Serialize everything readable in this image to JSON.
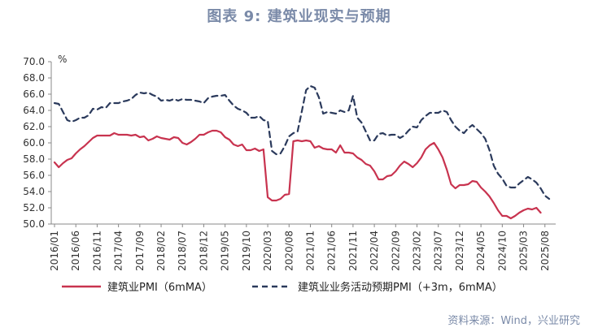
{
  "header": {
    "title": "图表 9:    建筑业现实与预期"
  },
  "footer": {
    "source": "资料来源：Wind，兴业研究"
  },
  "chart_data": {
    "type": "line",
    "title": "图表 9:    建筑业现实与预期",
    "ylabel": "%",
    "ylim": [
      50,
      70
    ],
    "yticks": [
      "70.0",
      "68.0",
      "66.0",
      "64.0",
      "62.0",
      "60.0",
      "58.0",
      "56.0",
      "54.0",
      "52.0",
      "50.0"
    ],
    "xtick_labels": [
      "2016/01",
      "2016/06",
      "2016/11",
      "2017/04",
      "2017/09",
      "2018/02",
      "2018/07",
      "2018/12",
      "2019/05",
      "2019/10",
      "2020/03",
      "2020/08",
      "2021/01",
      "2021/06",
      "2021/11",
      "2022/04",
      "2022/09",
      "2023/02",
      "2023/07",
      "2023/12",
      "2024/05",
      "2024/10",
      "2025/03",
      "2025/08"
    ],
    "x_start": "2016/01",
    "x_interval_months": 1,
    "grid": false,
    "legend_position": "bottom",
    "series": [
      {
        "name": "建筑业PMI（6mMA）",
        "color": "#c8334f",
        "style": "solid",
        "values": [
          57.6,
          57.0,
          57.5,
          57.9,
          58.1,
          58.7,
          59.2,
          59.6,
          60.1,
          60.6,
          60.9,
          60.9,
          60.9,
          60.9,
          61.2,
          61.0,
          61.0,
          61.0,
          60.9,
          61.0,
          60.7,
          60.8,
          60.3,
          60.5,
          60.8,
          60.6,
          60.5,
          60.4,
          60.7,
          60.6,
          60.0,
          59.8,
          60.1,
          60.5,
          61.0,
          61.0,
          61.3,
          61.5,
          61.5,
          61.3,
          60.7,
          60.4,
          59.8,
          59.6,
          59.8,
          59.1,
          59.1,
          59.3,
          59.0,
          59.2,
          53.3,
          52.9,
          52.9,
          53.1,
          53.6,
          53.7,
          60.2,
          60.3,
          60.2,
          60.3,
          60.2,
          59.4,
          59.6,
          59.3,
          59.2,
          59.2,
          58.8,
          59.7,
          58.8,
          58.8,
          58.7,
          58.2,
          57.9,
          57.4,
          57.2,
          56.5,
          55.5,
          55.5,
          55.9,
          56.0,
          56.5,
          57.2,
          57.7,
          57.4,
          57.0,
          57.5,
          58.2,
          59.2,
          59.7,
          60.0,
          59.2,
          58.2,
          56.7,
          54.9,
          54.4,
          54.8,
          54.8,
          54.9,
          55.3,
          55.2,
          54.5,
          54.0,
          53.4,
          52.6,
          51.7,
          51.0,
          51.0,
          50.7,
          51.0,
          51.4,
          51.7,
          51.9,
          51.8,
          52.0,
          51.4
        ]
      },
      {
        "name": "建筑业业务活动预期PMI（+3m，6mMA）",
        "color": "#2b3a5c",
        "style": "dashed",
        "values": [
          64.9,
          64.8,
          63.8,
          62.8,
          62.6,
          62.8,
          63.1,
          63.1,
          63.4,
          64.2,
          64.1,
          64.4,
          64.3,
          64.9,
          64.9,
          64.9,
          65.1,
          65.2,
          65.4,
          65.9,
          66.2,
          66.1,
          66.2,
          65.9,
          65.7,
          65.2,
          65.3,
          65.2,
          65.4,
          65.2,
          65.4,
          65.3,
          65.3,
          65.2,
          65.1,
          64.9,
          65.5,
          65.7,
          65.8,
          65.8,
          65.9,
          65.2,
          64.6,
          64.2,
          64.0,
          63.7,
          63.1,
          63.1,
          63.3,
          62.8,
          62.7,
          59.0,
          58.6,
          58.7,
          59.6,
          60.8,
          61.2,
          61.4,
          63.9,
          66.5,
          67.0,
          66.8,
          65.6,
          63.6,
          63.8,
          63.7,
          63.6,
          64.0,
          63.8,
          64.0,
          65.8,
          63.1,
          62.5,
          61.4,
          60.3,
          60.3,
          61.1,
          61.2,
          60.9,
          61.0,
          61.0,
          60.6,
          60.9,
          61.5,
          62.0,
          61.9,
          62.8,
          63.3,
          63.7,
          63.7,
          63.7,
          64.0,
          63.8,
          62.8,
          62.0,
          61.5,
          61.2,
          61.8,
          62.2,
          61.7,
          61.2,
          60.5,
          59.1,
          57.2,
          56.2,
          55.6,
          54.7,
          54.5,
          54.5,
          55.0,
          55.4,
          55.8,
          55.5,
          55.1,
          54.4,
          53.5,
          53.1
        ]
      }
    ]
  }
}
